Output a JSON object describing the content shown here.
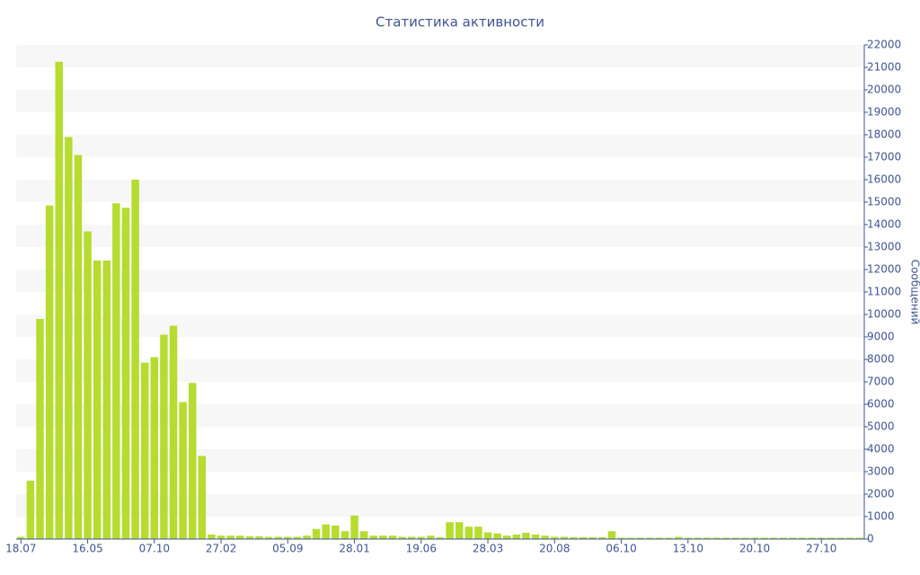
{
  "chart_data": {
    "type": "bar",
    "title": "Статистика активности",
    "y_axis_label": "Сообщений",
    "color": "#b5dc2f",
    "grid": true,
    "y_axis_side": "right",
    "categories": [
      "18.07",
      null,
      null,
      null,
      null,
      null,
      null,
      "16.05",
      null,
      null,
      null,
      null,
      null,
      null,
      "07.10",
      null,
      null,
      null,
      null,
      null,
      null,
      "27.02",
      null,
      null,
      null,
      null,
      null,
      null,
      "05.09",
      null,
      null,
      null,
      null,
      null,
      null,
      "28.01",
      null,
      null,
      null,
      null,
      null,
      null,
      "19.06",
      null,
      null,
      null,
      null,
      null,
      null,
      "28.03",
      null,
      null,
      null,
      null,
      null,
      null,
      "20.08",
      null,
      null,
      null,
      null,
      null,
      null,
      "06.10",
      null,
      null,
      null,
      null,
      null,
      null,
      "13.10",
      null,
      null,
      null,
      null,
      null,
      null,
      "20.10",
      null,
      null,
      null,
      null,
      null,
      null,
      "27.10",
      null,
      null,
      null,
      null
    ],
    "values": [
      100,
      2600,
      9800,
      14850,
      21250,
      17900,
      17100,
      13700,
      12400,
      12400,
      14950,
      14750,
      16000,
      7850,
      8100,
      9100,
      9500,
      6100,
      6950,
      3700,
      200,
      150,
      150,
      150,
      120,
      120,
      100,
      100,
      100,
      100,
      150,
      450,
      650,
      600,
      350,
      1050,
      350,
      150,
      150,
      150,
      100,
      100,
      100,
      150,
      80,
      750,
      750,
      550,
      550,
      300,
      250,
      150,
      200,
      280,
      200,
      150,
      100,
      100,
      80,
      80,
      80,
      80,
      350,
      60,
      60,
      60,
      60,
      60,
      60,
      100,
      60,
      60,
      60,
      60,
      60,
      60,
      60,
      60,
      60,
      60,
      60,
      60,
      60,
      60,
      60,
      60,
      60,
      60,
      60
    ],
    "ylim": [
      0,
      22000
    ],
    "yticks": [
      0,
      1000,
      2000,
      3000,
      4000,
      5000,
      6000,
      7000,
      8000,
      9000,
      10000,
      11000,
      12000,
      13000,
      14000,
      15000,
      16000,
      17000,
      18000,
      19000,
      20000,
      21000,
      22000
    ]
  }
}
